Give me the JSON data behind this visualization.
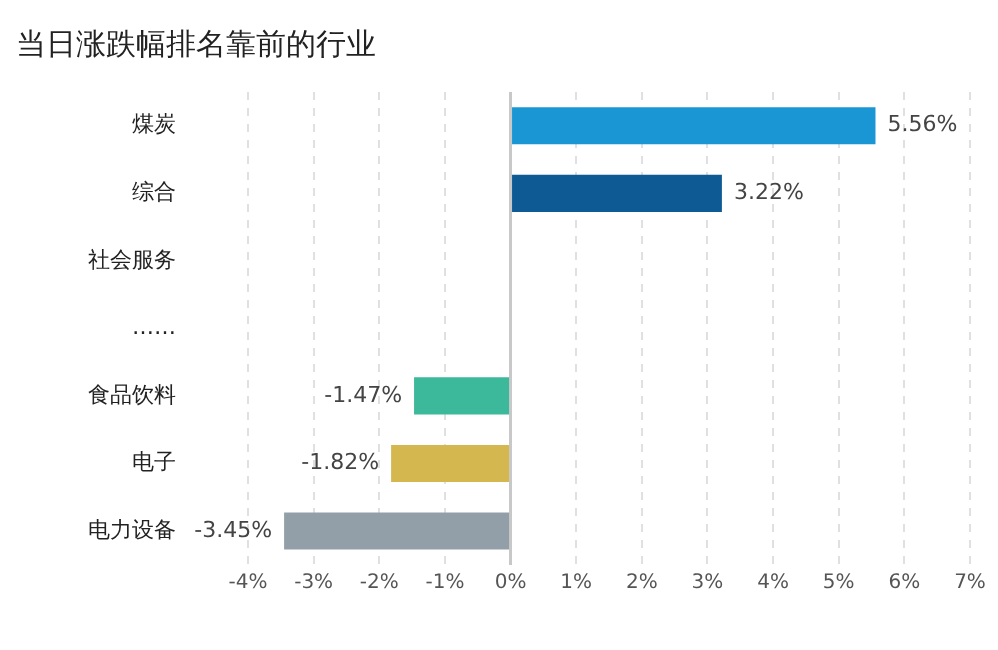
{
  "chart_data": {
    "type": "bar",
    "orientation": "horizontal",
    "title": "当日涨跌幅排名靠前的行业",
    "categories": [
      "煤炭",
      "综合",
      "社会服务",
      "……",
      "食品饮料",
      "电子",
      "电力设备"
    ],
    "values": [
      5.56,
      3.22,
      null,
      null,
      -1.47,
      -1.82,
      -3.45
    ],
    "value_labels": [
      "5.56%",
      "3.22%",
      null,
      null,
      "-1.47%",
      "-1.82%",
      "-3.45%"
    ],
    "colors": [
      "#1a96d4",
      "#0d5a94",
      "#2f4fa0",
      "#2f4fa0",
      "#3bb99a",
      "#d4b84f",
      "#939fa8"
    ],
    "xlim": [
      -4,
      7
    ],
    "xticks": [
      {
        "value": -4,
        "label": "-4%"
      },
      {
        "value": -3,
        "label": "-3%"
      },
      {
        "value": -2,
        "label": "-2%"
      },
      {
        "value": -1,
        "label": "-1%"
      },
      {
        "value": 0,
        "label": "0%"
      },
      {
        "value": 1,
        "label": "1%"
      },
      {
        "value": 2,
        "label": "2%"
      },
      {
        "value": 3,
        "label": "3%"
      },
      {
        "value": 4,
        "label": "4%"
      },
      {
        "value": 5,
        "label": "5%"
      },
      {
        "value": 6,
        "label": "6%"
      },
      {
        "value": 7,
        "label": "7%"
      }
    ],
    "grid": "x",
    "legend": false
  }
}
